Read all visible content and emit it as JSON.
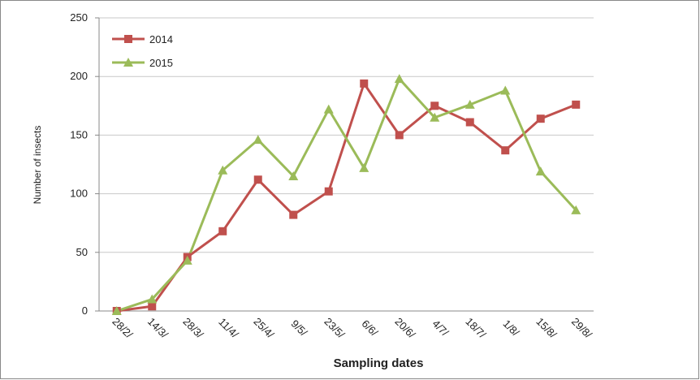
{
  "chart_data": {
    "type": "line",
    "categories": [
      "28/2/",
      "14/3/",
      "28/3/",
      "11/4/",
      "25/4/",
      "9/5/",
      "23/5/",
      "6/6/",
      "20/6/",
      "4/7/",
      "18/7/",
      "1/8/",
      "15/8/",
      "29/8/"
    ],
    "series": [
      {
        "name": "2014",
        "color": "#c0504d",
        "marker": "square",
        "values": [
          0,
          4,
          46,
          68,
          112,
          82,
          102,
          194,
          150,
          175,
          161,
          137,
          164,
          176
        ]
      },
      {
        "name": "2015",
        "color": "#9bbb59",
        "marker": "triangle",
        "values": [
          0,
          10,
          43,
          120,
          146,
          115,
          172,
          122,
          198,
          165,
          176,
          188,
          119,
          86
        ]
      }
    ],
    "xlabel": "Sampling dates",
    "ylabel": "Number of insects",
    "ylim": [
      0,
      250
    ],
    "yticks": [
      0,
      50,
      100,
      150,
      200,
      250
    ],
    "grid": true,
    "legend": "top-left"
  }
}
